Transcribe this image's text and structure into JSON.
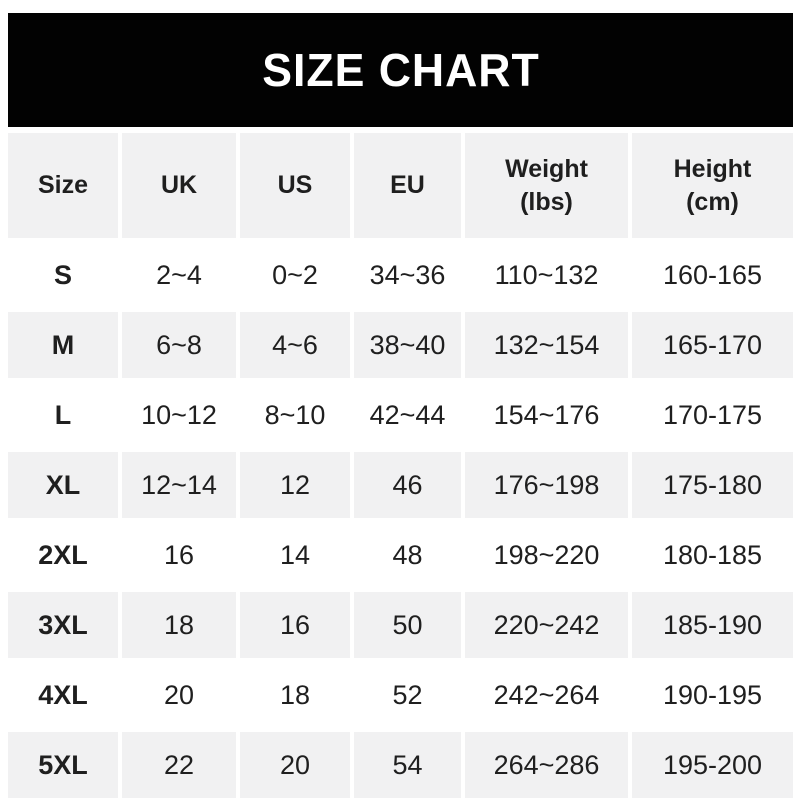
{
  "chart_data": {
    "type": "table",
    "title": "SIZE CHART",
    "columns": [
      "Size",
      "UK",
      "US",
      "EU",
      "Weight (lbs)",
      "Height (cm)"
    ],
    "rows": [
      [
        "S",
        "2~4",
        "0~2",
        "34~36",
        "110~132",
        "160-165"
      ],
      [
        "M",
        "6~8",
        "4~6",
        "38~40",
        "132~154",
        "165-170"
      ],
      [
        "L",
        "10~12",
        "8~10",
        "42~44",
        "154~176",
        "170-175"
      ],
      [
        "XL",
        "12~14",
        "12",
        "46",
        "176~198",
        "175-180"
      ],
      [
        "2XL",
        "16",
        "14",
        "48",
        "198~220",
        "180-185"
      ],
      [
        "3XL",
        "18",
        "16",
        "50",
        "220~242",
        "185-190"
      ],
      [
        "4XL",
        "20",
        "18",
        "52",
        "242~264",
        "190-195"
      ],
      [
        "5XL",
        "22",
        "20",
        "54",
        "264~286",
        "195-200"
      ]
    ],
    "layout_hints": {
      "header_background": "alternating rows start gray at header",
      "range_separator_sizes": "~",
      "range_separator_height": "-"
    }
  },
  "header": {
    "size": "Size",
    "uk": "UK",
    "us": "US",
    "eu": "EU",
    "weight_line1": "Weight",
    "weight_line2": "(lbs)",
    "height_line1": "Height",
    "height_line2": "(cm)"
  },
  "colors": {
    "banner_bg": "#020202",
    "banner_text": "#ffffff",
    "row_alt_bg": "#f1f1f2",
    "row_bg": "#ffffff",
    "text": "#1f1f1f"
  }
}
